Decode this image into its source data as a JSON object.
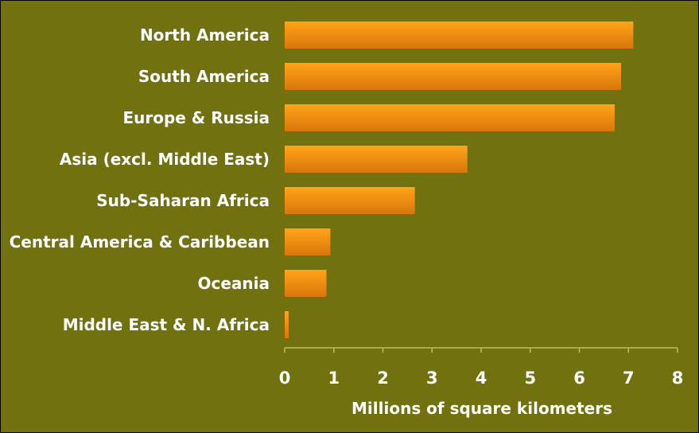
{
  "chart_data": {
    "type": "bar",
    "orientation": "horizontal",
    "categories": [
      "North America",
      "South America",
      "Europe & Russia",
      "Asia (excl. Middle East)",
      "Sub-Saharan Africa",
      "Central America & Caribbean",
      "Oceania",
      "Middle East & N. Africa"
    ],
    "values": [
      7.1,
      6.85,
      6.72,
      3.72,
      2.65,
      0.93,
      0.85,
      0.08
    ],
    "xlabel": "Millions of square kilometers",
    "xlim": [
      0,
      8
    ],
    "xticks": [
      "0",
      "1",
      "2",
      "3",
      "4",
      "5",
      "6",
      "7",
      "8"
    ],
    "grid": false,
    "colors": {
      "background": "#72710f",
      "bar_top": "#ffa51a",
      "bar_bottom": "#d9760a",
      "axis": "#b8c060",
      "text": "#ffffff"
    }
  }
}
